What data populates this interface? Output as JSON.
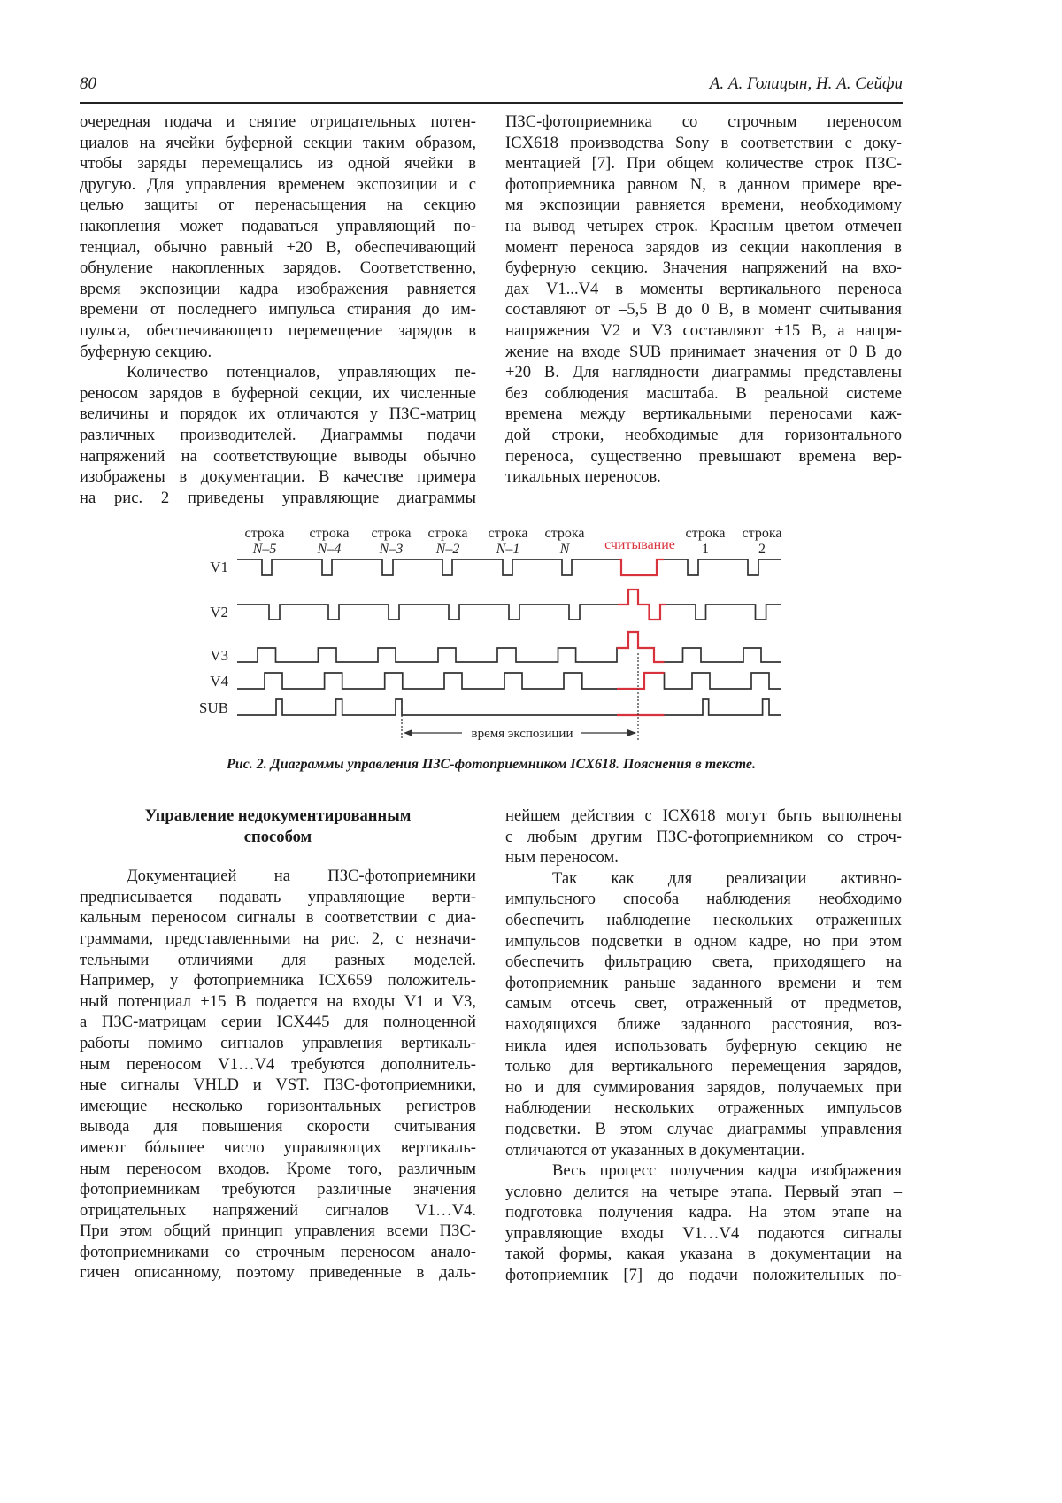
{
  "header": {
    "page_number": "80",
    "authors": "А. А. Голицын, Н. А. Сейфи"
  },
  "top_left": {
    "paragraphs": [
      {
        "indent": false,
        "lines": [
          "очередная подача и снятие отрицательных потен-",
          "циалов на ячейки буферной секции таким образом,",
          "чтобы заряды перемещались из одной ячейки в",
          "другую. Для управления временем экспозиции и с",
          "целью защиты от перенасыщения на секцию",
          "накопления может подаваться управляющий по-",
          "тенциал, обычно равный +20 В, обеспечивающий",
          "обнуление накопленных зарядов. Соответственно,",
          "время экспозиции кадра изображения равняется",
          "времени от последнего импульса стирания до им-",
          "пульса, обеспечивающего перемещение зарядов в",
          "буферную секцию."
        ]
      },
      {
        "indent": true,
        "continues": true,
        "lines": [
          "Количество потенциалов, управляющих пе-",
          "реносом зарядов в буферной секции, их численные",
          "величины и порядок их отличаются у ПЗС-матриц",
          "различных производителей. Диаграммы подачи",
          "напряжений на соответствующие выводы обычно",
          "изображены в документации. В качестве примера",
          "на рис. 2 приведены управляющие диаграммы"
        ]
      }
    ]
  },
  "top_right": {
    "paragraphs": [
      {
        "indent": false,
        "lines": [
          "ПЗС-фотоприемника со строчным переносом",
          "ICX618 производства Sony в соответствии с доку-",
          "ментацией [7]. При общем количестве строк ПЗС-",
          "фотоприемника равном N, в данном примере вре-",
          "мя экспозиции равняется времени, необходимому",
          "на вывод четырех строк. Красным цветом отмечен",
          "момент переноса зарядов из секции накопления в",
          "буферную секцию. Значения напряжений на вхо-",
          "дах V1...V4 в моменты вертикального переноса",
          "составляют от –5,5 В до 0 В, в момент считывания",
          "напряжения V2 и V3 составляют +15 В, а напря-",
          "жение на входе SUB принимает значения от 0 В до",
          "+20 В. Для наглядности диаграммы представлены",
          "без соблюдения масштаба. В реальной системе",
          "времена между вертикальными переносами каж-",
          "дой строки, необходимые для горизонтального",
          "переноса, существенно превышают времена вер-",
          "тикальных переносов."
        ]
      }
    ]
  },
  "figure": {
    "row_labels": [
      {
        "top": "строка",
        "bottom": "N–5"
      },
      {
        "top": "строка",
        "bottom": "N–4"
      },
      {
        "top": "строка",
        "bottom": "N–3"
      },
      {
        "top": "строка",
        "bottom": "N–2"
      },
      {
        "top": "строка",
        "bottom": "N–1"
      },
      {
        "top": "строка",
        "bottom": "N"
      },
      {
        "top": "",
        "bottom": "считывание"
      },
      {
        "top": "строка",
        "bottom": "1"
      },
      {
        "top": "строка",
        "bottom": "2"
      }
    ],
    "signals": [
      "V1",
      "V2",
      "V3",
      "V4",
      "SUB"
    ],
    "exposure_label": "время экспозиции",
    "readout_color": "#d8323c",
    "line_color": "#333333",
    "caption": "Рис. 2. Диаграммы управления ПЗС-фотоприемником ICX618. Пояснения в тексте."
  },
  "bottom_left": {
    "heading": [
      "Управление недокументированным",
      "способом"
    ],
    "paragraphs": [
      {
        "indent": true,
        "continues": true,
        "lines": [
          "Документацией на ПЗС-фотоприемники",
          "предписывается подавать управляющие верти-",
          "кальным переносом сигналы в соответствии с диа-",
          "граммами, представленными на рис. 2, с незначи-",
          "тельными отличиями для разных моделей.",
          "Например, у фотоприемника ICX659 положитель-",
          "ный потенциал +15 В подается на входы V1 и V3,",
          "а ПЗС-матрицам серии ICX445 для полноценной",
          "работы помимо сигналов управления вертикаль-",
          "ным переносом V1…V4 требуются дополнитель-",
          "ные сигналы VHLD и VST. ПЗС-фотоприемники,",
          "имеющие несколько горизонтальных регистров",
          "вывода для повышения скорости считывания",
          "имеют бóльшее число управляющих вертикаль-",
          "ным переносом входов. Кроме того, различным",
          "фотоприемникам требуются различные значения",
          "отрицательных напряжений сигналов V1…V4.",
          "При этом общий принцип управления всеми ПЗС-",
          "фотоприемниками со строчным переносом анало-",
          "гичен описанному, поэтому приведенные в даль-"
        ]
      }
    ]
  },
  "bottom_right": {
    "paragraphs": [
      {
        "indent": false,
        "lines": [
          "нейшем действия с ICX618 могут быть выполнены",
          "с любым другим ПЗС-фотоприемником со строч-",
          "ным переносом."
        ]
      },
      {
        "indent": true,
        "lines": [
          "Так как для реализации активно-",
          "импульсного способа наблюдения необходимо",
          "обеспечить наблюдение нескольких отраженных",
          "импульсов подсветки в одном кадре, но при этом",
          "обеспечить фильтрацию света, приходящего на",
          "фотоприемник раньше заданного времени и тем",
          "самым отсечь свет, отраженный от предметов,",
          "находящихся ближе заданного расстояния, воз-",
          "никла идея использовать буферную секцию не",
          "только для вертикального перемещения зарядов,",
          "но и для суммирования зарядов, получаемых при",
          "наблюдении нескольких отраженных импульсов",
          "подсветки. В этом случае диаграммы управления",
          "отличаются от указанных в документации."
        ]
      },
      {
        "indent": true,
        "continues": true,
        "lines": [
          "Весь процесс получения кадра изображения",
          "условно делится на четыре этапа. Первый этап –",
          "подготовка получения кадра. На этом этапе на",
          "управляющие входы V1…V4 подаются сигналы",
          "такой формы, какая указана в документации на",
          "фотоприемник [7] до подачи положительных по-"
        ]
      }
    ]
  }
}
